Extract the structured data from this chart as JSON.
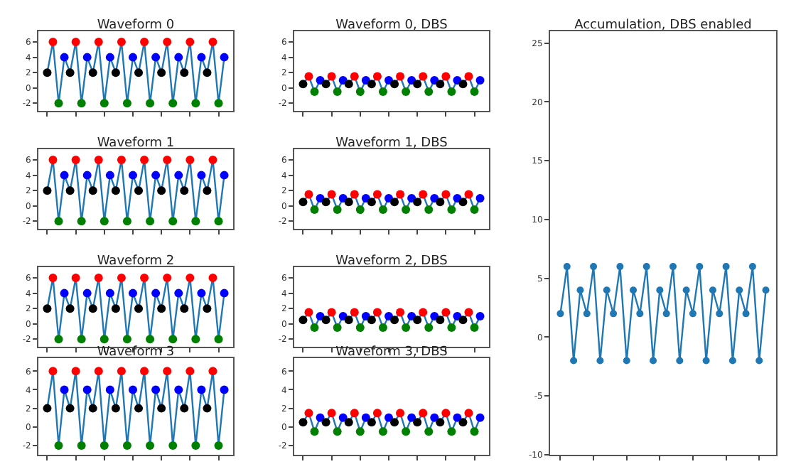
{
  "chart_data": [
    {
      "type": "line",
      "title": "Waveform 0",
      "categories": [
        null,
        null,
        null,
        null,
        null,
        null,
        null,
        null,
        null,
        null,
        null,
        null,
        null,
        null,
        null,
        null,
        null,
        null,
        null,
        null,
        null,
        null,
        null,
        null,
        null,
        null,
        null,
        null,
        null,
        null,
        null,
        null
      ],
      "ylim": [
        -3,
        7.4
      ],
      "yticks": [
        -2,
        0,
        2,
        4,
        6
      ],
      "tick_labels": "y",
      "marker": "circle",
      "series": [
        {
          "color": "#1f77b4",
          "colors": [
            "#000000",
            "#ff0000",
            "#008000",
            "#0000ff",
            "#000000",
            "#ff0000",
            "#008000",
            "#0000ff",
            "#000000",
            "#ff0000",
            "#008000",
            "#0000ff",
            "#000000",
            "#ff0000",
            "#008000",
            "#0000ff",
            "#000000",
            "#ff0000",
            "#008000",
            "#0000ff",
            "#000000",
            "#ff0000",
            "#008000",
            "#0000ff",
            "#000000",
            "#ff0000",
            "#008000",
            "#0000ff",
            "#000000",
            "#ff0000",
            "#008000",
            "#0000ff"
          ],
          "values": [
            2,
            6,
            -2,
            4,
            2,
            6,
            -2,
            4,
            2,
            6,
            -2,
            4,
            2,
            6,
            -2,
            4,
            2,
            6,
            -2,
            4,
            2,
            6,
            -2,
            4,
            2,
            6,
            -2,
            4,
            2,
            6,
            -2,
            4
          ]
        }
      ]
    },
    {
      "type": "line",
      "title": "Waveform 0, DBS",
      "categories": [
        null,
        null,
        null,
        null,
        null,
        null,
        null,
        null,
        null,
        null,
        null,
        null,
        null,
        null,
        null,
        null,
        null,
        null,
        null,
        null,
        null,
        null,
        null,
        null,
        null,
        null,
        null,
        null,
        null,
        null,
        null,
        null
      ],
      "ylim": [
        -3,
        7.4
      ],
      "yticks": [
        -2,
        0,
        2,
        4,
        6
      ],
      "tick_labels": "y",
      "marker": "circle",
      "series": [
        {
          "color": "#1f77b4",
          "colors": [
            "#000000",
            "#ff0000",
            "#008000",
            "#0000ff",
            "#000000",
            "#ff0000",
            "#008000",
            "#0000ff",
            "#000000",
            "#ff0000",
            "#008000",
            "#0000ff",
            "#000000",
            "#ff0000",
            "#008000",
            "#0000ff",
            "#000000",
            "#ff0000",
            "#008000",
            "#0000ff",
            "#000000",
            "#ff0000",
            "#008000",
            "#0000ff",
            "#000000",
            "#ff0000",
            "#008000",
            "#0000ff",
            "#000000",
            "#ff0000",
            "#008000",
            "#0000ff"
          ],
          "values": [
            0.5,
            1.5,
            -0.5,
            1,
            0.5,
            1.5,
            -0.5,
            1,
            0.5,
            1.5,
            -0.5,
            1,
            0.5,
            1.5,
            -0.5,
            1,
            0.5,
            1.5,
            -0.5,
            1,
            0.5,
            1.5,
            -0.5,
            1,
            0.5,
            1.5,
            -0.5,
            1,
            0.5,
            1.5,
            -0.5,
            1
          ]
        }
      ]
    },
    {
      "type": "line",
      "title": "Accumulation, DBS enabled",
      "categories": [
        null,
        null,
        null,
        null,
        null,
        null,
        null,
        null,
        null,
        null,
        null,
        null,
        null,
        null,
        null,
        null,
        null,
        null,
        null,
        null,
        null,
        null,
        null,
        null,
        null,
        null,
        null,
        null,
        null,
        null,
        null,
        null
      ],
      "ylim": [
        -10,
        26
      ],
      "yticks": [
        -10,
        -5,
        0,
        5,
        10,
        15,
        20,
        25
      ],
      "tick_labels": "y",
      "marker": "circle",
      "series": [
        {
          "color": "#1f77b4",
          "values": [
            2,
            6,
            -2,
            4,
            2,
            6,
            -2,
            4,
            2,
            6,
            -2,
            4,
            2,
            6,
            -2,
            4,
            2,
            6,
            -2,
            4,
            2,
            6,
            -2,
            4,
            2,
            6,
            -2,
            4,
            2,
            6,
            -2,
            4
          ]
        }
      ]
    },
    {
      "type": "line",
      "title": "Waveform 1",
      "categories": [
        null,
        null,
        null,
        null,
        null,
        null,
        null,
        null,
        null,
        null,
        null,
        null,
        null,
        null,
        null,
        null,
        null,
        null,
        null,
        null,
        null,
        null,
        null,
        null,
        null,
        null,
        null,
        null,
        null,
        null,
        null,
        null
      ],
      "ylim": [
        -3,
        7.4
      ],
      "yticks": [
        -2,
        0,
        2,
        4,
        6
      ],
      "tick_labels": "y",
      "marker": "circle",
      "series": [
        {
          "color": "#1f77b4",
          "colors": [
            "#000000",
            "#ff0000",
            "#008000",
            "#0000ff",
            "#000000",
            "#ff0000",
            "#008000",
            "#0000ff",
            "#000000",
            "#ff0000",
            "#008000",
            "#0000ff",
            "#000000",
            "#ff0000",
            "#008000",
            "#0000ff",
            "#000000",
            "#ff0000",
            "#008000",
            "#0000ff",
            "#000000",
            "#ff0000",
            "#008000",
            "#0000ff",
            "#000000",
            "#ff0000",
            "#008000",
            "#0000ff",
            "#000000",
            "#ff0000",
            "#008000",
            "#0000ff"
          ],
          "values": [
            2,
            6,
            -2,
            4,
            2,
            6,
            -2,
            4,
            2,
            6,
            -2,
            4,
            2,
            6,
            -2,
            4,
            2,
            6,
            -2,
            4,
            2,
            6,
            -2,
            4,
            2,
            6,
            -2,
            4,
            2,
            6,
            -2,
            4
          ]
        }
      ]
    },
    {
      "type": "line",
      "title": "Waveform 1, DBS",
      "categories": [
        null,
        null,
        null,
        null,
        null,
        null,
        null,
        null,
        null,
        null,
        null,
        null,
        null,
        null,
        null,
        null,
        null,
        null,
        null,
        null,
        null,
        null,
        null,
        null,
        null,
        null,
        null,
        null,
        null,
        null,
        null,
        null
      ],
      "ylim": [
        -3,
        7.4
      ],
      "yticks": [
        -2,
        0,
        2,
        4,
        6
      ],
      "tick_labels": "y",
      "marker": "circle",
      "series": [
        {
          "color": "#1f77b4",
          "colors": [
            "#000000",
            "#ff0000",
            "#008000",
            "#0000ff",
            "#000000",
            "#ff0000",
            "#008000",
            "#0000ff",
            "#000000",
            "#ff0000",
            "#008000",
            "#0000ff",
            "#000000",
            "#ff0000",
            "#008000",
            "#0000ff",
            "#000000",
            "#ff0000",
            "#008000",
            "#0000ff",
            "#000000",
            "#ff0000",
            "#008000",
            "#0000ff",
            "#000000",
            "#ff0000",
            "#008000",
            "#0000ff",
            "#000000",
            "#ff0000",
            "#008000",
            "#0000ff"
          ],
          "values": [
            0.5,
            1.5,
            -0.5,
            1,
            0.5,
            1.5,
            -0.5,
            1,
            0.5,
            1.5,
            -0.5,
            1,
            0.5,
            1.5,
            -0.5,
            1,
            0.5,
            1.5,
            -0.5,
            1,
            0.5,
            1.5,
            -0.5,
            1,
            0.5,
            1.5,
            -0.5,
            1,
            0.5,
            1.5,
            -0.5,
            1
          ]
        }
      ]
    },
    {
      "type": "line",
      "title": "Waveform 2",
      "categories": [
        null,
        null,
        null,
        null,
        null,
        null,
        null,
        null,
        null,
        null,
        null,
        null,
        null,
        null,
        null,
        null,
        null,
        null,
        null,
        null,
        null,
        null,
        null,
        null,
        null,
        null,
        null,
        null,
        null,
        null,
        null,
        null
      ],
      "ylim": [
        -3,
        7.4
      ],
      "yticks": [
        -2,
        0,
        2,
        4,
        6
      ],
      "tick_labels": "y",
      "marker": "circle",
      "series": [
        {
          "color": "#1f77b4",
          "colors": [
            "#000000",
            "#ff0000",
            "#008000",
            "#0000ff",
            "#000000",
            "#ff0000",
            "#008000",
            "#0000ff",
            "#000000",
            "#ff0000",
            "#008000",
            "#0000ff",
            "#000000",
            "#ff0000",
            "#008000",
            "#0000ff",
            "#000000",
            "#ff0000",
            "#008000",
            "#0000ff",
            "#000000",
            "#ff0000",
            "#008000",
            "#0000ff",
            "#000000",
            "#ff0000",
            "#008000",
            "#0000ff",
            "#000000",
            "#ff0000",
            "#008000",
            "#0000ff"
          ],
          "values": [
            2,
            6,
            -2,
            4,
            2,
            6,
            -2,
            4,
            2,
            6,
            -2,
            4,
            2,
            6,
            -2,
            4,
            2,
            6,
            -2,
            4,
            2,
            6,
            -2,
            4,
            2,
            6,
            -2,
            4,
            2,
            6,
            -2,
            4
          ]
        }
      ]
    },
    {
      "type": "line",
      "title": "Waveform 2, DBS",
      "categories": [
        null,
        null,
        null,
        null,
        null,
        null,
        null,
        null,
        null,
        null,
        null,
        null,
        null,
        null,
        null,
        null,
        null,
        null,
        null,
        null,
        null,
        null,
        null,
        null,
        null,
        null,
        null,
        null,
        null,
        null,
        null,
        null
      ],
      "ylim": [
        -3,
        7.4
      ],
      "yticks": [
        -2,
        0,
        2,
        4,
        6
      ],
      "tick_labels": "y",
      "marker": "circle",
      "series": [
        {
          "color": "#1f77b4",
          "colors": [
            "#000000",
            "#ff0000",
            "#008000",
            "#0000ff",
            "#000000",
            "#ff0000",
            "#008000",
            "#0000ff",
            "#000000",
            "#ff0000",
            "#008000",
            "#0000ff",
            "#000000",
            "#ff0000",
            "#008000",
            "#0000ff",
            "#000000",
            "#ff0000",
            "#008000",
            "#0000ff",
            "#000000",
            "#ff0000",
            "#008000",
            "#0000ff",
            "#000000",
            "#ff0000",
            "#008000",
            "#0000ff",
            "#000000",
            "#ff0000",
            "#008000",
            "#0000ff"
          ],
          "values": [
            0.5,
            1.5,
            -0.5,
            1,
            0.5,
            1.5,
            -0.5,
            1,
            0.5,
            1.5,
            -0.5,
            1,
            0.5,
            1.5,
            -0.5,
            1,
            0.5,
            1.5,
            -0.5,
            1,
            0.5,
            1.5,
            -0.5,
            1,
            0.5,
            1.5,
            -0.5,
            1,
            0.5,
            1.5,
            -0.5,
            1
          ]
        }
      ]
    },
    {
      "type": "line",
      "title": "Waveform 3",
      "categories": [
        null,
        null,
        null,
        null,
        null,
        null,
        null,
        null,
        null,
        null,
        null,
        null,
        null,
        null,
        null,
        null,
        null,
        null,
        null,
        null,
        null,
        null,
        null,
        null,
        null,
        null,
        null,
        null,
        null,
        null,
        null,
        null
      ],
      "ylim": [
        -3,
        7.4
      ],
      "yticks": [
        -2,
        0,
        2,
        4,
        6
      ],
      "tick_labels": "y",
      "marker": "circle",
      "series": [
        {
          "color": "#1f77b4",
          "colors": [
            "#000000",
            "#ff0000",
            "#008000",
            "#0000ff",
            "#000000",
            "#ff0000",
            "#008000",
            "#0000ff",
            "#000000",
            "#ff0000",
            "#008000",
            "#0000ff",
            "#000000",
            "#ff0000",
            "#008000",
            "#0000ff",
            "#000000",
            "#ff0000",
            "#008000",
            "#0000ff",
            "#000000",
            "#ff0000",
            "#008000",
            "#0000ff",
            "#000000",
            "#ff0000",
            "#008000",
            "#0000ff",
            "#000000",
            "#ff0000",
            "#008000",
            "#0000ff"
          ],
          "values": [
            2,
            6,
            -2,
            4,
            2,
            6,
            -2,
            4,
            2,
            6,
            -2,
            4,
            2,
            6,
            -2,
            4,
            2,
            6,
            -2,
            4,
            2,
            6,
            -2,
            4,
            2,
            6,
            -2,
            4,
            2,
            6,
            -2,
            4
          ]
        }
      ]
    },
    {
      "type": "line",
      "title": "Waveform 3, DBS",
      "categories": [
        null,
        null,
        null,
        null,
        null,
        null,
        null,
        null,
        null,
        null,
        null,
        null,
        null,
        null,
        null,
        null,
        null,
        null,
        null,
        null,
        null,
        null,
        null,
        null,
        null,
        null,
        null,
        null,
        null,
        null,
        null,
        null
      ],
      "ylim": [
        -3,
        7.4
      ],
      "yticks": [
        -2,
        0,
        2,
        4,
        6
      ],
      "tick_labels": "y",
      "marker": "circle",
      "series": [
        {
          "color": "#1f77b4",
          "colors": [
            "#000000",
            "#ff0000",
            "#008000",
            "#0000ff",
            "#000000",
            "#ff0000",
            "#008000",
            "#0000ff",
            "#000000",
            "#ff0000",
            "#008000",
            "#0000ff",
            "#000000",
            "#ff0000",
            "#008000",
            "#0000ff",
            "#000000",
            "#ff0000",
            "#008000",
            "#0000ff",
            "#000000",
            "#ff0000",
            "#008000",
            "#0000ff",
            "#000000",
            "#ff0000",
            "#008000",
            "#0000ff",
            "#000000",
            "#ff0000",
            "#008000",
            "#0000ff"
          ],
          "values": [
            0.5,
            1.5,
            -0.5,
            1,
            0.5,
            1.5,
            -0.5,
            1,
            0.5,
            1.5,
            -0.5,
            1,
            0.5,
            1.5,
            -0.5,
            1,
            0.5,
            1.5,
            -0.5,
            1,
            0.5,
            1.5,
            -0.5,
            1,
            0.5,
            1.5,
            -0.5,
            1,
            0.5,
            1.5,
            -0.5,
            1
          ]
        }
      ]
    }
  ]
}
